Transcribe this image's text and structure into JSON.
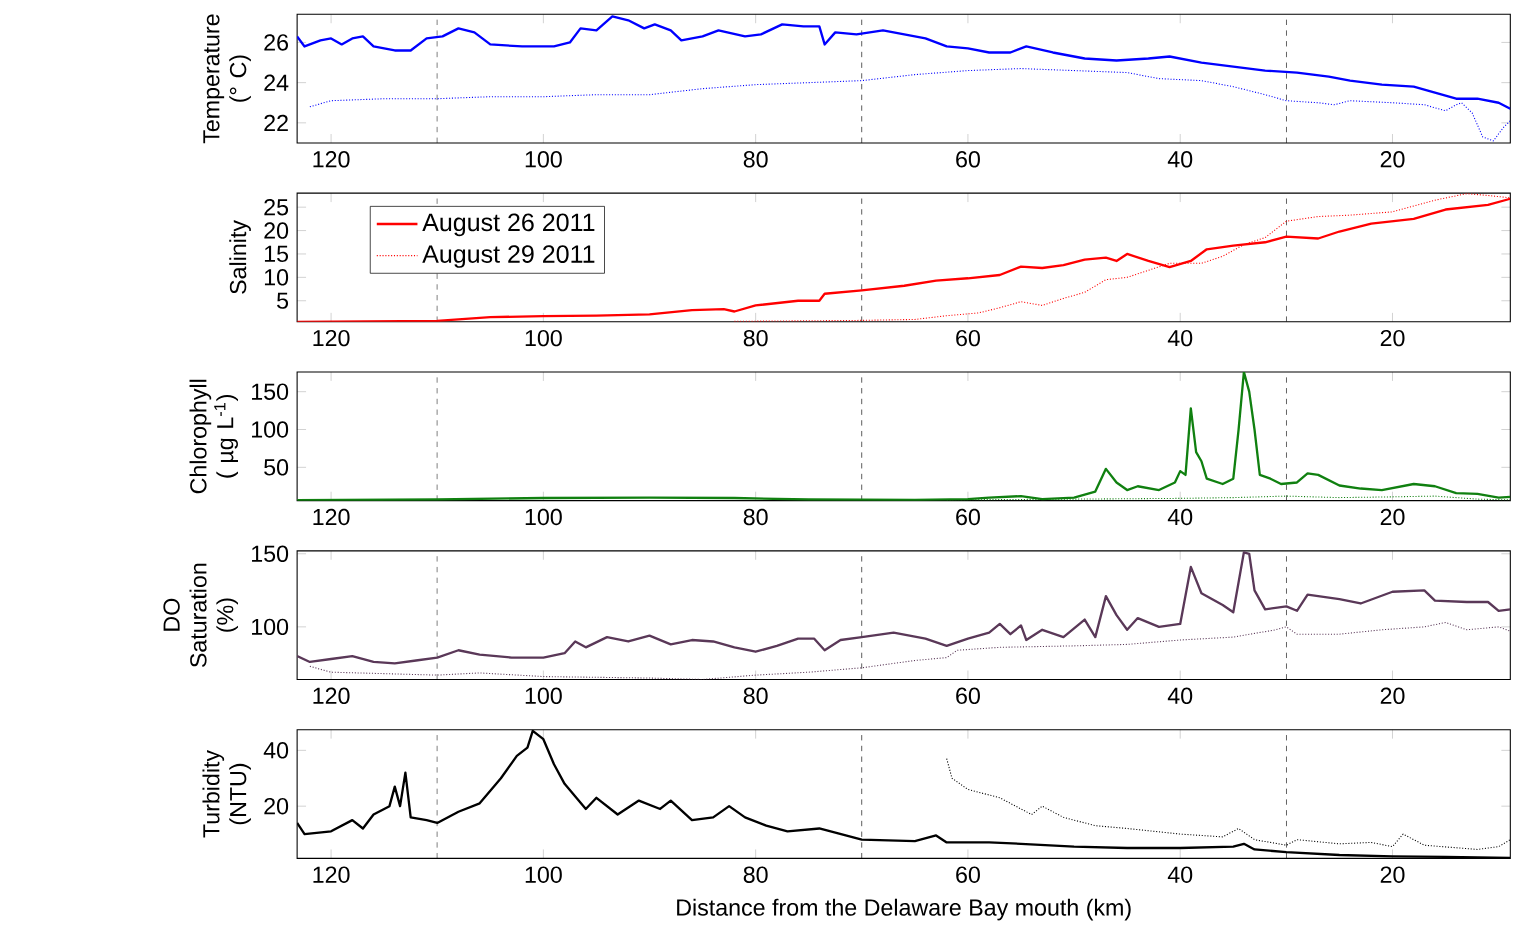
{
  "chart_data": [
    {
      "type": "line",
      "ylabel": "Temperature (° C)",
      "xlim": [
        123.2,
        8.9
      ],
      "xticks": [
        120,
        100,
        80,
        60,
        40,
        20
      ],
      "ylim": [
        21,
        27.4
      ],
      "yticks": [
        22,
        24,
        26
      ],
      "ref_lines": [
        {
          "axis": "x",
          "value": 110,
          "color": "#000000",
          "line_style": "dashed"
        },
        {
          "axis": "x",
          "value": 70,
          "color": "#000000",
          "line_style": "dashed"
        },
        {
          "axis": "x",
          "value": 30,
          "color": "#000000",
          "line_style": "dashed"
        }
      ],
      "series": [
        {
          "color": "#0000ff",
          "line_style": "solid",
          "x": [
            123.2,
            122.5,
            121,
            120,
            119,
            118,
            117,
            116,
            114,
            112.5,
            111,
            109.5,
            108,
            106.5,
            105,
            102,
            99,
            97.5,
            96.5,
            95,
            93.5,
            92,
            90.5,
            89.5,
            88,
            87,
            85,
            83.5,
            81,
            79.5,
            77.5,
            75.5,
            74,
            73.5,
            72.5,
            70.5,
            68,
            66,
            64,
            62,
            60,
            58,
            56,
            54.5,
            52,
            49,
            46,
            43,
            41,
            38,
            35,
            32,
            29,
            26,
            24,
            21,
            18,
            16,
            14,
            12,
            10,
            8.9
          ],
          "values": [
            26.3,
            25.8,
            26.1,
            26.2,
            25.9,
            26.2,
            26.3,
            25.8,
            25.6,
            25.6,
            26.2,
            26.3,
            26.7,
            26.5,
            25.9,
            25.8,
            25.8,
            26.0,
            26.7,
            26.6,
            27.3,
            27.1,
            26.7,
            26.9,
            26.6,
            26.1,
            26.3,
            26.6,
            26.3,
            26.4,
            26.9,
            26.8,
            26.8,
            25.9,
            26.5,
            26.4,
            26.6,
            26.4,
            26.2,
            25.8,
            25.7,
            25.5,
            25.5,
            25.8,
            25.5,
            25.2,
            25.1,
            25.2,
            25.3,
            25.0,
            24.8,
            24.6,
            24.5,
            24.3,
            24.1,
            23.9,
            23.8,
            23.5,
            23.2,
            23.2,
            23.0,
            22.7
          ]
        },
        {
          "color": "#0000ff",
          "line_style": "dotted",
          "x": [
            122,
            120,
            115,
            110,
            105,
            100,
            95,
            90,
            85,
            80,
            75,
            70,
            65,
            60,
            55,
            50,
            45,
            42,
            38,
            35,
            32,
            30,
            27,
            25.5,
            24,
            20,
            17,
            15,
            14,
            13.5,
            12.5,
            11.5,
            10.5,
            9.5,
            8.9
          ],
          "values": [
            22.8,
            23.1,
            23.2,
            23.2,
            23.3,
            23.3,
            23.4,
            23.4,
            23.7,
            23.9,
            24.0,
            24.1,
            24.4,
            24.6,
            24.7,
            24.6,
            24.5,
            24.2,
            24.1,
            23.8,
            23.4,
            23.1,
            23.0,
            22.9,
            23.1,
            23.0,
            22.9,
            22.6,
            22.9,
            23.0,
            22.5,
            21.3,
            21.1,
            21.8,
            22.1
          ]
        }
      ]
    },
    {
      "type": "line",
      "ylabel": "Salinity",
      "xlim": [
        123.2,
        8.9
      ],
      "xticks": [
        120,
        100,
        80,
        60,
        40,
        20
      ],
      "ylim": [
        0.5,
        28
      ],
      "yticks": [
        5,
        10,
        15,
        20,
        25
      ],
      "legend": "top left",
      "ref_lines": [
        {
          "axis": "x",
          "value": 110,
          "color": "#000000",
          "line_style": "dashed"
        },
        {
          "axis": "x",
          "value": 70,
          "color": "#000000",
          "line_style": "dashed"
        },
        {
          "axis": "x",
          "value": 30,
          "color": "#000000",
          "line_style": "dashed"
        }
      ],
      "series": [
        {
          "name": "August 26 2011",
          "color": "#ff0000",
          "line_style": "solid",
          "x": [
            123.2,
            110,
            105,
            100,
            95,
            90,
            86,
            83,
            82,
            80,
            76,
            74,
            73.5,
            70,
            66,
            63,
            60,
            57,
            55,
            53,
            51,
            49,
            47,
            46,
            45,
            43,
            41,
            39,
            37.5,
            35,
            32,
            30,
            27,
            25,
            22,
            18,
            15,
            13,
            11,
            8.9
          ],
          "values": [
            0.5,
            0.7,
            1.5,
            1.7,
            1.8,
            2.1,
            3.0,
            3.2,
            2.7,
            4.0,
            5.0,
            5.0,
            6.5,
            7.2,
            8.2,
            9.3,
            9.8,
            10.5,
            12.3,
            12.0,
            12.6,
            13.8,
            14.2,
            13.5,
            15.0,
            13.5,
            12.2,
            13.5,
            16.0,
            16.8,
            17.5,
            18.7,
            18.3,
            19.8,
            21.5,
            22.5,
            24.5,
            25.0,
            25.5,
            26.8
          ]
        },
        {
          "name": "August 29 2011",
          "color": "#ff0000",
          "line_style": "dotted",
          "x": [
            82,
            70,
            65,
            62,
            59,
            57,
            55,
            53,
            51,
            49,
            47,
            45,
            43,
            41,
            38,
            36,
            34,
            32,
            30,
            27,
            24,
            20,
            16,
            13,
            11,
            8.9
          ],
          "values": [
            0.6,
            0.8,
            1.0,
            1.8,
            2.4,
            3.5,
            4.8,
            4.0,
            5.5,
            6.8,
            9.5,
            10.0,
            11.5,
            13.0,
            13.0,
            14.5,
            17.0,
            18.5,
            22.0,
            23.0,
            23.3,
            24.0,
            26.5,
            27.9,
            27.5,
            27.0
          ]
        }
      ]
    },
    {
      "type": "line",
      "ylabel": "Chlorophyll ( µg L$^{-1}$)",
      "xlim": [
        123.2,
        8.9
      ],
      "xticks": [
        120,
        100,
        80,
        60,
        40,
        20
      ],
      "ylim": [
        6,
        176
      ],
      "yticks": [
        50,
        100,
        150
      ],
      "ref_lines": [
        {
          "axis": "x",
          "value": 110,
          "color": "#000000",
          "line_style": "dashed"
        },
        {
          "axis": "x",
          "value": 70,
          "color": "#000000",
          "line_style": "dashed"
        },
        {
          "axis": "x",
          "value": 30,
          "color": "#000000",
          "line_style": "dashed"
        }
      ],
      "series": [
        {
          "color": "#108010",
          "line_style": "solid",
          "x": [
            123.2,
            110,
            100,
            90,
            82,
            75,
            65,
            60,
            58,
            55,
            53,
            50,
            48,
            47,
            46,
            45,
            44,
            42,
            40.5,
            40,
            39.5,
            39,
            38.5,
            38,
            37.5,
            36,
            35,
            34.5,
            34,
            33.5,
            33,
            32.5,
            31.5,
            30.5,
            29,
            28,
            27,
            25,
            23,
            21,
            18,
            16,
            14,
            12,
            10,
            8.9
          ],
          "values": [
            6.5,
            7.5,
            9.5,
            10,
            9.5,
            7.5,
            7,
            8,
            10,
            12,
            8,
            10,
            18,
            48,
            30,
            20,
            25,
            20,
            30,
            45,
            40,
            128,
            70,
            58,
            35,
            28,
            35,
            100,
            176,
            150,
            100,
            40,
            35,
            28,
            30,
            42,
            40,
            26,
            22,
            20,
            28,
            25,
            16,
            15,
            10,
            11
          ]
        },
        {
          "color": "#108010",
          "line_style": "dotted",
          "x": [
            62,
            50,
            40,
            35,
            30,
            25,
            20,
            16,
            12,
            8.9
          ],
          "values": [
            7,
            8,
            9,
            10,
            12,
            10,
            11,
            12,
            8,
            7
          ]
        }
      ]
    },
    {
      "type": "line",
      "ylabel": "DO Saturation (%)",
      "xlim": [
        123.2,
        8.9
      ],
      "xticks": [
        120,
        100,
        80,
        60,
        40,
        20
      ],
      "ylim": [
        64,
        152
      ],
      "yticks": [
        100,
        150
      ],
      "ref_lines": [
        {
          "axis": "x",
          "value": 110,
          "color": "#000000",
          "line_style": "dashed"
        },
        {
          "axis": "x",
          "value": 70,
          "color": "#000000",
          "line_style": "dashed"
        },
        {
          "axis": "x",
          "value": 30,
          "color": "#000000",
          "line_style": "dashed"
        }
      ],
      "series": [
        {
          "color": "#5a3858",
          "line_style": "solid",
          "x": [
            123.2,
            122,
            120,
            118,
            116,
            114,
            112,
            110,
            108,
            106,
            103,
            100,
            98,
            97,
            96,
            94,
            92,
            90,
            88,
            86,
            84,
            82,
            80,
            78,
            76,
            74.5,
            73.5,
            72,
            70,
            67,
            64,
            62,
            60,
            58,
            57,
            56,
            55,
            54.5,
            53,
            51,
            49,
            48,
            47,
            46,
            45,
            44,
            42,
            40,
            39,
            38,
            36,
            35,
            34,
            33.5,
            33,
            32,
            30,
            29,
            28,
            25,
            23,
            20,
            17,
            16,
            13,
            11,
            10,
            8.9
          ],
          "values": [
            80,
            76,
            78,
            80,
            76,
            75,
            77,
            79,
            84,
            81,
            79,
            79,
            82,
            90,
            86,
            93,
            90,
            94,
            88,
            91,
            90,
            86,
            83,
            87,
            92,
            92,
            84,
            91,
            93,
            96,
            92,
            87,
            92,
            96,
            102,
            95,
            101,
            91,
            98,
            93,
            105,
            93,
            121,
            108,
            98,
            106,
            100,
            102,
            141,
            123,
            115,
            110,
            151,
            150,
            125,
            112,
            114,
            111,
            122,
            119,
            116,
            124,
            125,
            118,
            117,
            117,
            111,
            112
          ]
        },
        {
          "color": "#5a3858",
          "line_style": "dotted",
          "x": [
            122,
            120,
            115,
            110,
            106,
            100,
            90,
            85,
            80,
            75,
            70,
            65,
            62,
            61,
            57,
            50,
            45,
            40,
            35,
            31,
            30,
            29,
            25,
            21,
            17,
            15,
            13,
            10,
            8.9
          ],
          "values": [
            73,
            69,
            68,
            67,
            68.5,
            66,
            65,
            64,
            67,
            69,
            72,
            77,
            79,
            84,
            86,
            87,
            88,
            91,
            93,
            98,
            100,
            95,
            95,
            98,
            100,
            103,
            98,
            100,
            97
          ]
        }
      ]
    },
    {
      "type": "line",
      "ylabel": "Turbidity (NTU)",
      "xlabel": "Distance from the Delaware Bay mouth (km)",
      "xlim": [
        123.2,
        8.9
      ],
      "xticks": [
        120,
        100,
        80,
        60,
        40,
        20
      ],
      "ylim": [
        1.3,
        47.4
      ],
      "yticks": [
        20,
        40
      ],
      "ref_lines": [
        {
          "axis": "x",
          "value": 110,
          "color": "#000000",
          "line_style": "dashed"
        },
        {
          "axis": "x",
          "value": 70,
          "color": "#000000",
          "line_style": "dashed"
        },
        {
          "axis": "x",
          "value": 30,
          "color": "#000000",
          "line_style": "dashed"
        }
      ],
      "series": [
        {
          "color": "#000000",
          "line_style": "solid",
          "x": [
            123.2,
            122.5,
            120,
            118,
            117,
            116,
            114.5,
            114,
            113.5,
            113,
            112.5,
            111,
            110,
            108,
            106,
            104,
            102.5,
            101.5,
            101,
            100,
            99,
            98,
            96,
            95,
            93,
            91,
            89,
            88,
            86,
            84,
            82.5,
            81,
            79,
            77,
            74,
            72,
            70,
            65,
            63,
            62,
            58,
            55,
            50,
            45,
            40,
            35,
            34,
            33,
            30,
            25,
            20,
            15,
            8.9
          ],
          "values": [
            14,
            10,
            11,
            15,
            12,
            17,
            20,
            27,
            20,
            32,
            16,
            15,
            14,
            18,
            21,
            30,
            38,
            41,
            47,
            44,
            35,
            28,
            19,
            23,
            17,
            22,
            19,
            22,
            15,
            16,
            20,
            16,
            13,
            11,
            12,
            10,
            8,
            7.5,
            9.5,
            7,
            7,
            6.5,
            5.5,
            5,
            5,
            5.5,
            6.5,
            4.5,
            3.5,
            2.5,
            2,
            1.8,
            1.5
          ]
        },
        {
          "color": "#000000",
          "line_style": "dotted",
          "x": [
            62,
            61.5,
            60,
            57,
            55,
            54,
            53,
            51,
            48,
            45,
            40,
            36,
            34.5,
            33,
            30,
            29,
            25,
            22,
            20,
            19,
            17,
            12,
            10,
            8.9
          ],
          "values": [
            37,
            30,
            26,
            23,
            19,
            17,
            20,
            16,
            13,
            12,
            10,
            9,
            12,
            8,
            6,
            8,
            6.5,
            7,
            5.5,
            10,
            6,
            4.5,
            5.5,
            8
          ]
        }
      ]
    }
  ]
}
